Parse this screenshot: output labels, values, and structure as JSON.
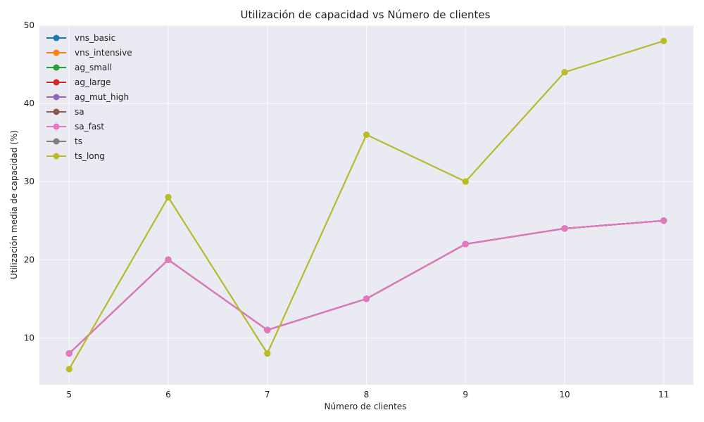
{
  "chart_data": {
    "type": "line",
    "title": "Utilización de capacidad vs Número de clientes",
    "xlabel": "Número de clientes",
    "ylabel": "Utilización media de capacidad (%)",
    "x": [
      5,
      6,
      7,
      8,
      9,
      10,
      11
    ],
    "x_ticks": [
      "5",
      "6",
      "7",
      "8",
      "9",
      "10",
      "11"
    ],
    "y_ticks": [
      "10",
      "20",
      "30",
      "40",
      "50"
    ],
    "xlim": [
      4.7,
      11.3
    ],
    "ylim": [
      4,
      50
    ],
    "grid": true,
    "legend_position": "top-left",
    "background_color": "#eaeaf2",
    "series": [
      {
        "name": "vns_basic",
        "color": "#1f77b4",
        "values": [
          8,
          20,
          11,
          15,
          22,
          24,
          25
        ]
      },
      {
        "name": "vns_intensive",
        "color": "#ff7f0e",
        "values": [
          8,
          20,
          11,
          15,
          22,
          24,
          25
        ]
      },
      {
        "name": "ag_small",
        "color": "#2ca02c",
        "values": [
          8,
          20,
          11,
          15,
          22,
          24,
          25
        ]
      },
      {
        "name": "ag_large",
        "color": "#d62728",
        "values": [
          8,
          20,
          11,
          15,
          22,
          24,
          25
        ]
      },
      {
        "name": "ag_mut_high",
        "color": "#9467bd",
        "values": [
          8,
          20,
          11,
          15,
          22,
          24,
          25
        ]
      },
      {
        "name": "sa",
        "color": "#8c564b",
        "values": [
          8,
          20,
          11,
          15,
          22,
          24,
          25
        ]
      },
      {
        "name": "sa_fast",
        "color": "#e377c2",
        "values": [
          8,
          20,
          11,
          15,
          22,
          24,
          25
        ]
      },
      {
        "name": "ts",
        "color": "#7f7f7f",
        "values": [
          6,
          28,
          8,
          36,
          30,
          44,
          48
        ]
      },
      {
        "name": "ts_long",
        "color": "#bcbd22",
        "values": [
          6,
          28,
          8,
          36,
          30,
          44,
          48
        ]
      }
    ]
  }
}
